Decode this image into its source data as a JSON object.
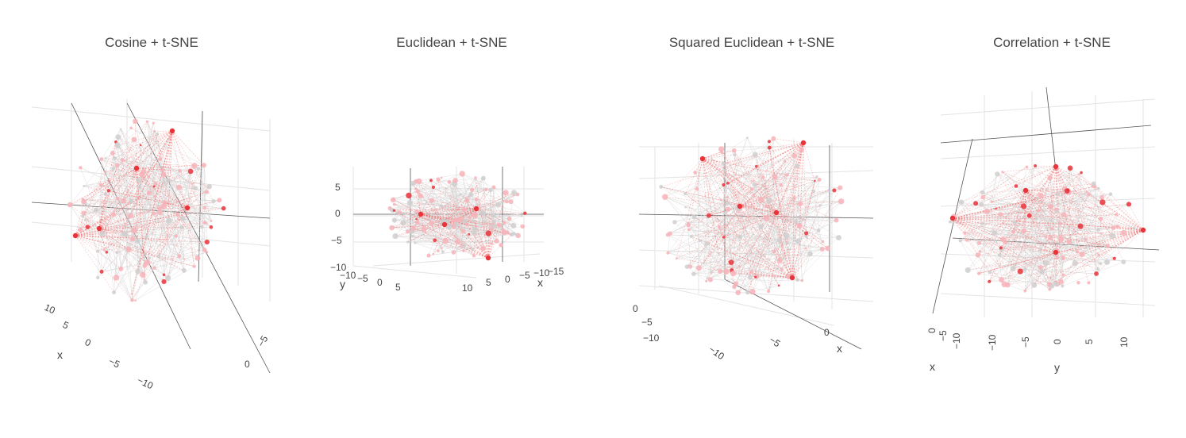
{
  "figure": {
    "titles": [
      "Cosine + t-SNE",
      "Euclidean + t-SNE",
      "Squared Euclidean + t-SNE",
      "Correlation + t-SNE"
    ]
  },
  "colors": {
    "edge_gray": "#d8d8d8",
    "edge_red": "#f26b6b",
    "node_pink": "#f7b3b8",
    "node_gray": "#cfcfcf",
    "node_red": "#e8333a",
    "grid": "#e3e3e3",
    "zero_line": "#555555"
  },
  "chart_data": [
    {
      "type": "scatter3d",
      "title": "Cosine + t-SNE",
      "axis_labels": {
        "x": "x",
        "y": "",
        "z": ""
      },
      "x_ticks": [
        "10",
        "5",
        "0",
        "−5",
        "−10"
      ],
      "y_ticks": [
        "0",
        "−5"
      ],
      "z_ticks": [],
      "xlim": [
        -12,
        12
      ],
      "ylim": [
        -12,
        12
      ],
      "zlim": [
        -12,
        12
      ],
      "grid": true
    },
    {
      "type": "scatter3d",
      "title": "Euclidean + t-SNE",
      "axis_labels": {
        "x": "x",
        "y": "y",
        "z": ""
      },
      "x_ticks": [
        "10",
        "5",
        "0",
        "−5",
        "−10",
        "−15"
      ],
      "y_ticks": [
        "−10",
        "−5",
        "0",
        "5"
      ],
      "z_ticks": [
        "5",
        "0",
        "−5",
        "−10"
      ],
      "xlim": [
        -15,
        12
      ],
      "ylim": [
        -12,
        8
      ],
      "zlim": [
        -10,
        8
      ],
      "grid": true
    },
    {
      "type": "scatter3d",
      "title": "Squared Euclidean + t-SNE",
      "axis_labels": {
        "x": "x",
        "y": "",
        "z": ""
      },
      "x_ticks": [
        "−10",
        "−5",
        "0"
      ],
      "y_ticks": [
        "0",
        "−5",
        "−10"
      ],
      "z_ticks": [],
      "xlim": [
        -12,
        6
      ],
      "ylim": [
        -12,
        6
      ],
      "zlim": [
        -12,
        12
      ],
      "grid": true
    },
    {
      "type": "scatter3d",
      "title": "Correlation + t-SNE",
      "axis_labels": {
        "x": "x",
        "y": "y",
        "z": ""
      },
      "x_ticks": [
        "0",
        "−5",
        "−10"
      ],
      "y_ticks": [
        "−10",
        "−5",
        "0",
        "5",
        "10"
      ],
      "z_ticks": [],
      "xlim": [
        -12,
        12
      ],
      "ylim": [
        -12,
        12
      ],
      "zlim": [
        -12,
        12
      ],
      "grid": true
    }
  ]
}
